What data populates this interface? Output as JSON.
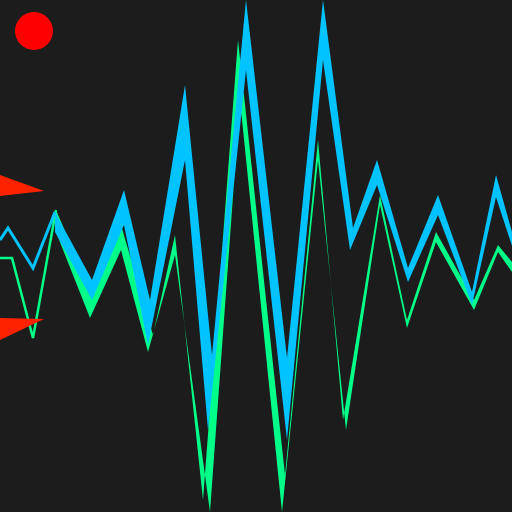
{
  "colors": {
    "background": "#1c1c1c",
    "wave_front": "#00c3ff",
    "wave_back": "#00ff88",
    "record_indicator": "#ff0000",
    "player_arrow": "#ff2200"
  },
  "elements": {
    "record_indicator": "red-dot",
    "player": "red-arrow-ship"
  }
}
